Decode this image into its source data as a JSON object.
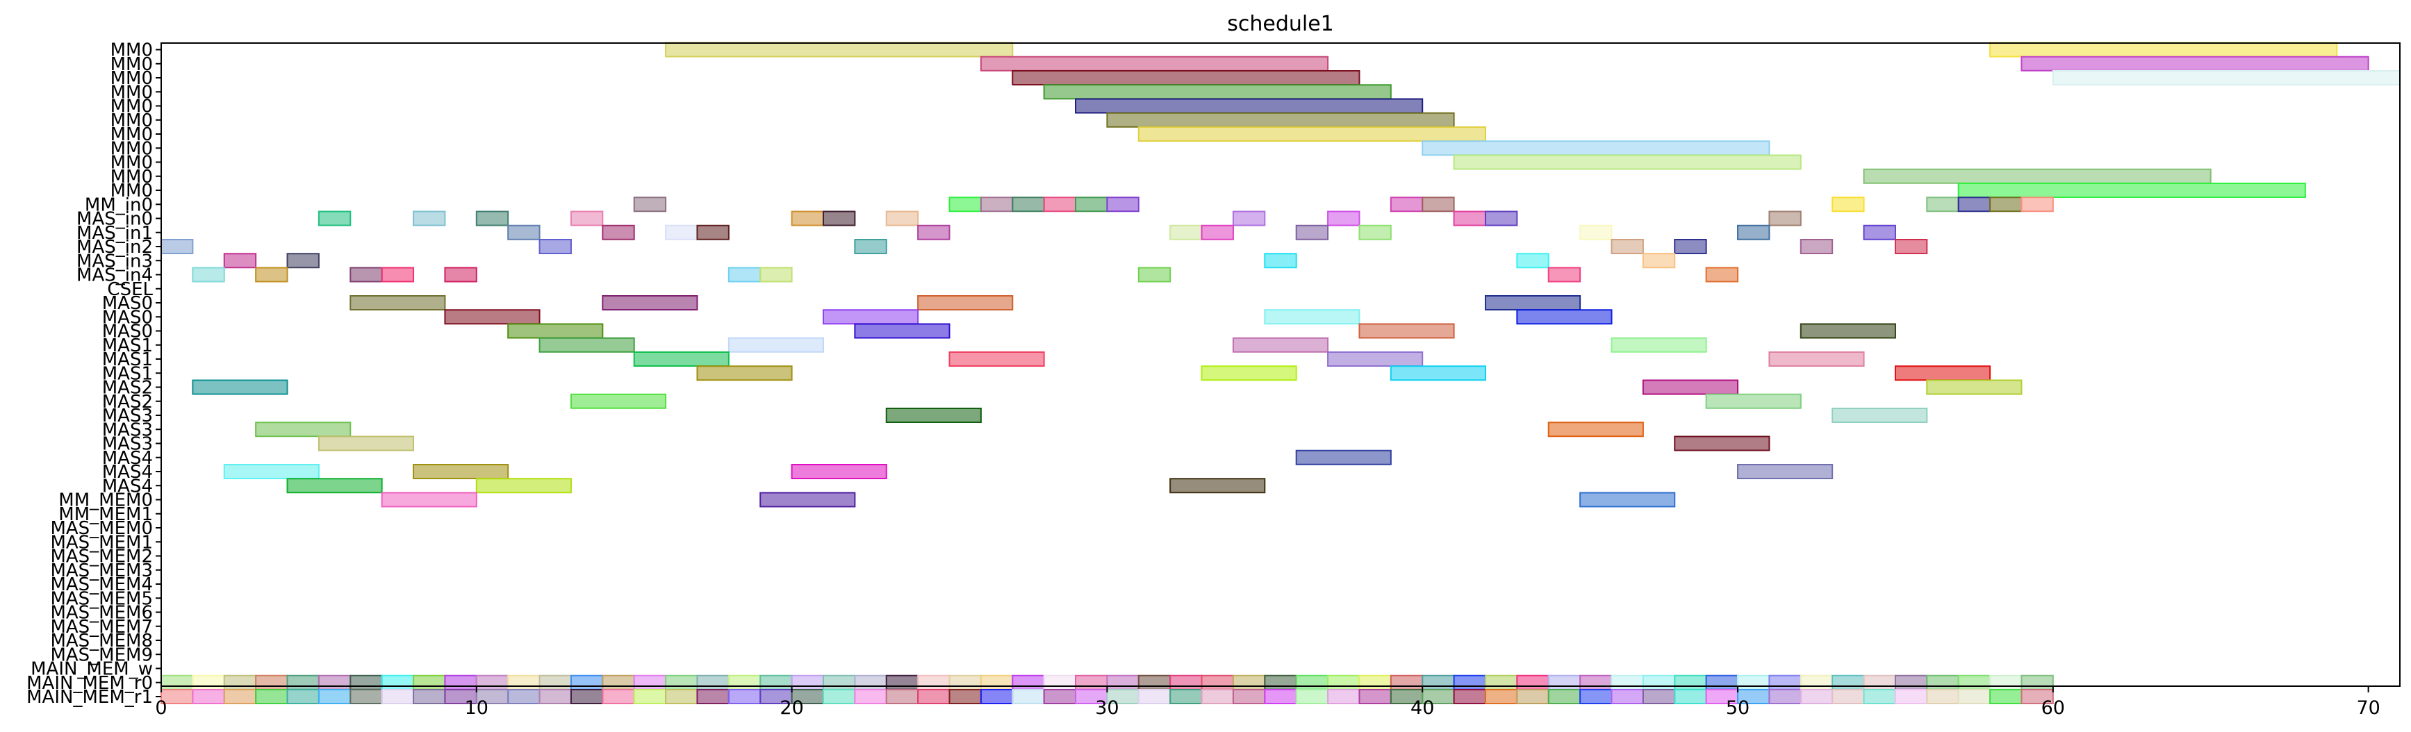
{
  "chart_data": {
    "type": "gantt",
    "title": "schedule1",
    "xlim": [
      0,
      71
    ],
    "xticks": [
      0,
      10,
      20,
      30,
      40,
      50,
      60,
      70
    ],
    "grid": false,
    "rows": [
      "MM0",
      "MM0",
      "MM0",
      "MM0",
      "MM0",
      "MM0",
      "MM0",
      "MM0",
      "MM0",
      "MM0",
      "MM0",
      "MM_in0",
      "MAS_in0",
      "MAS_in1",
      "MAS_in2",
      "MAS_in3",
      "MAS_in4",
      "CSEL",
      "MAS0",
      "MAS0",
      "MAS0",
      "MAS1",
      "MAS1",
      "MAS1",
      "MAS2",
      "MAS2",
      "MAS3",
      "MAS3",
      "MAS3",
      "MAS4",
      "MAS4",
      "MAS4",
      "MM_MEM0",
      "MM_MEM1",
      "MAS_MEM0",
      "MAS_MEM1",
      "MAS_MEM2",
      "MAS_MEM3",
      "MAS_MEM4",
      "MAS_MEM5",
      "MAS_MEM6",
      "MAS_MEM7",
      "MAS_MEM8",
      "MAS_MEM9",
      "MAIN_MEM_w",
      "MAIN_MEM_r0",
      "MAIN_MEM_r1"
    ],
    "tasks": [
      {
        "row": 0,
        "start": 16,
        "end": 27,
        "color": "#d4d05a"
      },
      {
        "row": 0,
        "start": 58,
        "end": 69,
        "color": "#f5e03c"
      },
      {
        "row": 1,
        "start": 26,
        "end": 37,
        "color": "#c8487a"
      },
      {
        "row": 1,
        "start": 59,
        "end": 70,
        "color": "#c040c8"
      },
      {
        "row": 2,
        "start": 27,
        "end": 38,
        "color": "#7a1020"
      },
      {
        "row": 2,
        "start": 60,
        "end": 71,
        "color": "#d8f0f0"
      },
      {
        "row": 3,
        "start": 28,
        "end": 39,
        "color": "#409a30"
      },
      {
        "row": 4,
        "start": 29,
        "end": 40,
        "color": "#1c1c80"
      },
      {
        "row": 5,
        "start": 30,
        "end": 41,
        "color": "#707020"
      },
      {
        "row": 6,
        "start": 31,
        "end": 42,
        "color": "#e0d040"
      },
      {
        "row": 7,
        "start": 40,
        "end": 51,
        "color": "#90d0f0"
      },
      {
        "row": 8,
        "start": 41,
        "end": 52,
        "color": "#b8e880"
      },
      {
        "row": 9,
        "start": 54,
        "end": 65,
        "color": "#80c070"
      },
      {
        "row": 10,
        "start": 57,
        "end": 68,
        "color": "#30f040"
      },
      {
        "row": 11,
        "start": 15,
        "end": 16,
        "color": "#8a7080"
      },
      {
        "row": 11,
        "start": 25,
        "end": 26,
        "color": "#30f040"
      },
      {
        "row": 11,
        "start": 26,
        "end": 27,
        "color": "#a07090"
      },
      {
        "row": 11,
        "start": 27,
        "end": 28,
        "color": "#408060"
      },
      {
        "row": 11,
        "start": 28,
        "end": 29,
        "color": "#e84880"
      },
      {
        "row": 11,
        "start": 29,
        "end": 30,
        "color": "#409a50"
      },
      {
        "row": 11,
        "start": 30,
        "end": 31,
        "color": "#8040d0"
      },
      {
        "row": 11,
        "start": 39,
        "end": 40,
        "color": "#d040b0"
      },
      {
        "row": 11,
        "start": 40,
        "end": 41,
        "color": "#a06060"
      },
      {
        "row": 11,
        "start": 53,
        "end": 54,
        "color": "#f8e030"
      },
      {
        "row": 11,
        "start": 56,
        "end": 57,
        "color": "#80c080"
      },
      {
        "row": 11,
        "start": 57,
        "end": 58,
        "color": "#303090"
      },
      {
        "row": 11,
        "start": 58,
        "end": 59,
        "color": "#707020"
      },
      {
        "row": 11,
        "start": 59,
        "end": 60,
        "color": "#f89080"
      },
      {
        "row": 12,
        "start": 5,
        "end": 6,
        "color": "#20c080"
      },
      {
        "row": 12,
        "start": 8,
        "end": 9,
        "color": "#80c0d0"
      },
      {
        "row": 12,
        "start": 10,
        "end": 11,
        "color": "#408070"
      },
      {
        "row": 12,
        "start": 13,
        "end": 14,
        "color": "#e880b0"
      },
      {
        "row": 12,
        "start": 20,
        "end": 21,
        "color": "#d09030"
      },
      {
        "row": 12,
        "start": 21,
        "end": 22,
        "color": "#402030"
      },
      {
        "row": 12,
        "start": 23,
        "end": 24,
        "color": "#e8b890"
      },
      {
        "row": 12,
        "start": 34,
        "end": 35,
        "color": "#b070e0"
      },
      {
        "row": 12,
        "start": 37,
        "end": 38,
        "color": "#d050e8"
      },
      {
        "row": 12,
        "start": 41,
        "end": 42,
        "color": "#e040a0"
      },
      {
        "row": 12,
        "start": 42,
        "end": 43,
        "color": "#6040c0"
      },
      {
        "row": 12,
        "start": 51,
        "end": 52,
        "color": "#a08070"
      },
      {
        "row": 13,
        "start": 11,
        "end": 12,
        "color": "#6080b0"
      },
      {
        "row": 13,
        "start": 14,
        "end": 15,
        "color": "#a03070"
      },
      {
        "row": 13,
        "start": 16,
        "end": 17,
        "color": "#d8e0f8"
      },
      {
        "row": 13,
        "start": 17,
        "end": 18,
        "color": "#602020"
      },
      {
        "row": 13,
        "start": 24,
        "end": 25,
        "color": "#b040a0"
      },
      {
        "row": 13,
        "start": 32,
        "end": 33,
        "color": "#d0e8a0"
      },
      {
        "row": 13,
        "start": 33,
        "end": 34,
        "color": "#e040c0"
      },
      {
        "row": 13,
        "start": 36,
        "end": 37,
        "color": "#8060a0"
      },
      {
        "row": 13,
        "start": 38,
        "end": 39,
        "color": "#90e070"
      },
      {
        "row": 13,
        "start": 45,
        "end": 46,
        "color": "#f8f8c0"
      },
      {
        "row": 13,
        "start": 50,
        "end": 51,
        "color": "#4070a0"
      },
      {
        "row": 13,
        "start": 54,
        "end": 55,
        "color": "#6040d0"
      },
      {
        "row": 14,
        "start": 0,
        "end": 1,
        "color": "#80a0d0"
      },
      {
        "row": 14,
        "start": 12,
        "end": 13,
        "color": "#6060d0"
      },
      {
        "row": 14,
        "start": 22,
        "end": 23,
        "color": "#40a0a0"
      },
      {
        "row": 14,
        "start": 46,
        "end": 47,
        "color": "#d0a080"
      },
      {
        "row": 14,
        "start": 48,
        "end": 49,
        "color": "#303090"
      },
      {
        "row": 14,
        "start": 52,
        "end": 53,
        "color": "#a06090"
      },
      {
        "row": 14,
        "start": 55,
        "end": 56,
        "color": "#d03050"
      },
      {
        "row": 15,
        "start": 2,
        "end": 3,
        "color": "#c03090"
      },
      {
        "row": 15,
        "start": 4,
        "end": 5,
        "color": "#404060"
      },
      {
        "row": 15,
        "start": 35,
        "end": 36,
        "color": "#20e0f0"
      },
      {
        "row": 15,
        "start": 43,
        "end": 44,
        "color": "#40f0f0"
      },
      {
        "row": 15,
        "start": 47,
        "end": 48,
        "color": "#f8c080"
      },
      {
        "row": 16,
        "start": 1,
        "end": 2,
        "color": "#80d8d8"
      },
      {
        "row": 16,
        "start": 3,
        "end": 4,
        "color": "#c09020"
      },
      {
        "row": 16,
        "start": 6,
        "end": 7,
        "color": "#804070"
      },
      {
        "row": 16,
        "start": 7,
        "end": 8,
        "color": "#f03070"
      },
      {
        "row": 16,
        "start": 9,
        "end": 10,
        "color": "#d02060"
      },
      {
        "row": 16,
        "start": 18,
        "end": 19,
        "color": "#70d0f0"
      },
      {
        "row": 16,
        "start": 19,
        "end": 20,
        "color": "#c0e070"
      },
      {
        "row": 16,
        "start": 31,
        "end": 32,
        "color": "#70d050"
      },
      {
        "row": 16,
        "start": 44,
        "end": 45,
        "color": "#f04080"
      },
      {
        "row": 16,
        "start": 49,
        "end": 50,
        "color": "#e07030"
      },
      {
        "row": 18,
        "start": 6,
        "end": 9,
        "color": "#707030"
      },
      {
        "row": 18,
        "start": 14,
        "end": 17,
        "color": "#802070"
      },
      {
        "row": 18,
        "start": 24,
        "end": 27,
        "color": "#d06030"
      },
      {
        "row": 18,
        "start": 42,
        "end": 45,
        "color": "#203090"
      },
      {
        "row": 19,
        "start": 9,
        "end": 12,
        "color": "#801020"
      },
      {
        "row": 19,
        "start": 21,
        "end": 24,
        "color": "#9040f0"
      },
      {
        "row": 19,
        "start": 35,
        "end": 38,
        "color": "#80f0f0"
      },
      {
        "row": 19,
        "start": 43,
        "end": 46,
        "color": "#1020e0"
      },
      {
        "row": 20,
        "start": 11,
        "end": 14,
        "color": "#509010"
      },
      {
        "row": 20,
        "start": 22,
        "end": 25,
        "color": "#3010d0"
      },
      {
        "row": 20,
        "start": 38,
        "end": 41,
        "color": "#d06040"
      },
      {
        "row": 20,
        "start": 52,
        "end": 55,
        "color": "#304010"
      },
      {
        "row": 21,
        "start": 12,
        "end": 15,
        "color": "#40a040"
      },
      {
        "row": 21,
        "start": 18,
        "end": 21,
        "color": "#c0d8f8"
      },
      {
        "row": 21,
        "start": 34,
        "end": 37,
        "color": "#c070b0"
      },
      {
        "row": 21,
        "start": 46,
        "end": 49,
        "color": "#90f090"
      },
      {
        "row": 22,
        "start": 15,
        "end": 18,
        "color": "#10c050"
      },
      {
        "row": 22,
        "start": 25,
        "end": 28,
        "color": "#f04060"
      },
      {
        "row": 22,
        "start": 37,
        "end": 40,
        "color": "#9070d0"
      },
      {
        "row": 22,
        "start": 51,
        "end": 54,
        "color": "#e080a0"
      },
      {
        "row": 23,
        "start": 17,
        "end": 20,
        "color": "#a09010"
      },
      {
        "row": 23,
        "start": 33,
        "end": 36,
        "color": "#b0f010"
      },
      {
        "row": 23,
        "start": 39,
        "end": 42,
        "color": "#10d0f0"
      },
      {
        "row": 23,
        "start": 55,
        "end": 58,
        "color": "#e01010"
      },
      {
        "row": 24,
        "start": 1,
        "end": 4,
        "color": "#109090"
      },
      {
        "row": 24,
        "start": 47,
        "end": 50,
        "color": "#b01080"
      },
      {
        "row": 24,
        "start": 56,
        "end": 59,
        "color": "#b0d030"
      },
      {
        "row": 25,
        "start": 13,
        "end": 16,
        "color": "#50e040"
      },
      {
        "row": 25,
        "start": 49,
        "end": 52,
        "color": "#80d080"
      },
      {
        "row": 26,
        "start": 23,
        "end": 26,
        "color": "#106010"
      },
      {
        "row": 26,
        "start": 53,
        "end": 56,
        "color": "#90d0c0"
      },
      {
        "row": 27,
        "start": 3,
        "end": 6,
        "color": "#70c050"
      },
      {
        "row": 27,
        "start": 44,
        "end": 47,
        "color": "#e06010"
      },
      {
        "row": 28,
        "start": 5,
        "end": 8,
        "color": "#c0c070"
      },
      {
        "row": 28,
        "start": 48,
        "end": 51,
        "color": "#701020"
      },
      {
        "row": 29,
        "start": 36,
        "end": 39,
        "color": "#3040a0"
      },
      {
        "row": 30,
        "start": 2,
        "end": 5,
        "color": "#60f0f0"
      },
      {
        "row": 30,
        "start": 8,
        "end": 11,
        "color": "#a09010"
      },
      {
        "row": 30,
        "start": 20,
        "end": 23,
        "color": "#e010c0"
      },
      {
        "row": 30,
        "start": 50,
        "end": 53,
        "color": "#7070b0"
      },
      {
        "row": 31,
        "start": 4,
        "end": 7,
        "color": "#10b030"
      },
      {
        "row": 31,
        "start": 10,
        "end": 13,
        "color": "#b0e010"
      },
      {
        "row": 31,
        "start": 32,
        "end": 35,
        "color": "#403010"
      },
      {
        "row": 32,
        "start": 7,
        "end": 10,
        "color": "#f060c0"
      },
      {
        "row": 32,
        "start": 19,
        "end": 22,
        "color": "#5020a0"
      },
      {
        "row": 32,
        "start": 45,
        "end": 48,
        "color": "#3070d0"
      }
    ],
    "memory_rows": {
      "r0_row": 45,
      "r1_row": 46,
      "start": 0,
      "end": 60,
      "r0_colors": [
        "#a0e080",
        "#f8f8b0",
        "#c0c080",
        "#d08060",
        "#50a080",
        "#b070b0",
        "#406050",
        "#40f0f0",
        "#80d040",
        "#b040e0",
        "#c080c0",
        "#f0e0a0",
        "#c0c0a0",
        "#4090f0",
        "#c0a060",
        "#e080f0",
        "#80d080",
        "#80b0b0",
        "#c0f080",
        "#60c0a0",
        "#c0a0f0",
        "#80c0b0",
        "#b0b0d0",
        "#402040",
        "#f0c0c0",
        "#e0d0a0",
        "#f0d080",
        "#c040f0",
        "#f0e0f0",
        "#e060a0",
        "#c070c0",
        "#705040",
        "#e04080",
        "#e05070",
        "#c0b060",
        "#406040",
        "#60e060",
        "#a0f060",
        "#e0f060",
        "#d06060",
        "#50a0a0",
        "#2040f0",
        "#b0d060",
        "#f03080",
        "#b0b0f0",
        "#c060c0",
        "#c0f0f0",
        "#90f0f0",
        "#40e0c0",
        "#3060e0",
        "#b0f0f0",
        "#8080f0",
        "#f0f0c0",
        "#60c0c0",
        "#e0c0c0",
        "#9070a0",
        "#70c070",
        "#80e070",
        "#d0f0d0",
        "#80c080"
      ],
      "r1_colors": [
        "#f08080",
        "#f070d0",
        "#e0a060",
        "#40d040",
        "#40b0a0",
        "#40b0f0",
        "#607060",
        "#e0d0f0",
        "#8070a0",
        "#8040a0",
        "#9080b0",
        "#8080c0",
        "#b080b0",
        "#402040",
        "#f070a0",
        "#c0f060",
        "#c0c060",
        "#802060",
        "#8060f0",
        "#6040c0",
        "#406050",
        "#60e0c0",
        "#f080e0",
        "#c07080",
        "#e04070",
        "#802020",
        "#2020f0",
        "#c0e0f0",
        "#a040a0",
        "#d060f0",
        "#a0d0c0",
        "#e0d0f0",
        "#40a080",
        "#e0a0c0",
        "#c06090",
        "#d040f0",
        "#a0f0a0",
        "#e0a0e0",
        "#b040a0",
        "#407040",
        "#60a060",
        "#901040",
        "#e07020",
        "#c0a060",
        "#50b050",
        "#2040f0",
        "#b060f0",
        "#8060a0",
        "#40e0d0",
        "#e060f0",
        "#40a0f0",
        "#a070d0",
        "#e0b0e0",
        "#e0c0c0",
        "#70e0d0",
        "#f0c0f0",
        "#e0d0b0",
        "#e0e0c0",
        "#40e040",
        "#d07080"
      ]
    }
  }
}
